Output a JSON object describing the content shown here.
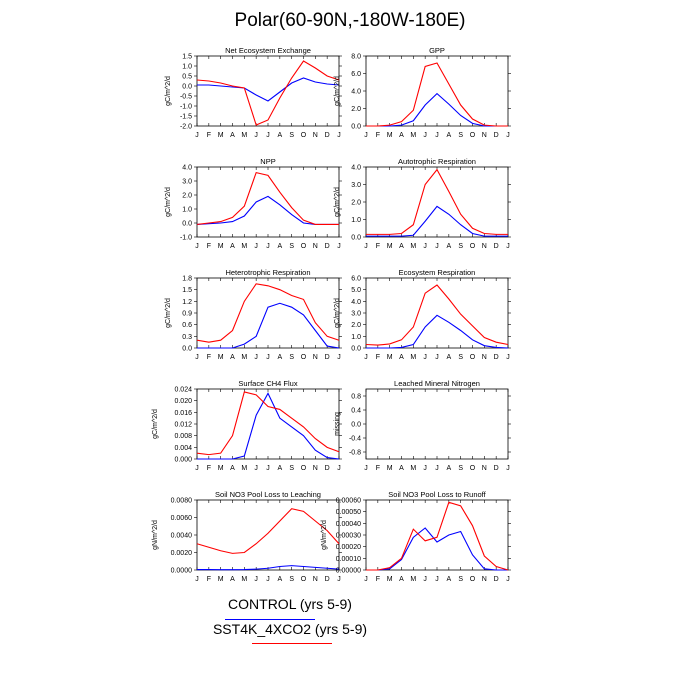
{
  "page_title": "Polar(60-90N,-180W-180E)",
  "legend": [
    {
      "label": "CONTROL (yrs 5-9)",
      "color": "#0000ff"
    },
    {
      "label": "SST4K_4XCO2 (yrs 5-9)",
      "color": "#ff0000"
    }
  ],
  "colors": {
    "control": "#0000ff",
    "experiment": "#ff0000"
  },
  "chart_data": [
    {
      "type": "line",
      "title": "Net Ecosystem Exchange",
      "ylabel": "gC/m^2/d",
      "categories": [
        "J",
        "F",
        "M",
        "A",
        "M",
        "J",
        "J",
        "A",
        "S",
        "O",
        "N",
        "D",
        "J"
      ],
      "ylim": [
        -2.0,
        1.5
      ],
      "yticks": [
        "1.5",
        "1.0",
        "0.5",
        "0.0",
        "-0.5",
        "-1.0",
        "-1.5",
        "-2.0"
      ],
      "series": [
        {
          "color": "#0000ff",
          "values": [
            0.05,
            0.05,
            0.0,
            -0.05,
            -0.1,
            -0.45,
            -0.75,
            -0.3,
            0.15,
            0.4,
            0.2,
            0.1,
            0.05
          ]
        },
        {
          "color": "#ff0000",
          "values": [
            0.3,
            0.25,
            0.15,
            0.0,
            -0.1,
            -1.95,
            -1.7,
            -0.6,
            0.4,
            1.25,
            0.9,
            0.5,
            0.3
          ]
        }
      ]
    },
    {
      "type": "line",
      "title": "GPP",
      "ylabel": "gC/m^2/d",
      "categories": [
        "J",
        "F",
        "M",
        "A",
        "M",
        "J",
        "J",
        "A",
        "S",
        "O",
        "N",
        "D",
        "J"
      ],
      "ylim": [
        0,
        8
      ],
      "yticks": [
        "8.0",
        "6.0",
        "4.0",
        "2.0",
        "0.0"
      ],
      "series": [
        {
          "color": "#0000ff",
          "values": [
            0,
            0,
            0,
            0.1,
            0.6,
            2.4,
            3.7,
            2.5,
            1.2,
            0.3,
            0,
            0,
            0
          ]
        },
        {
          "color": "#ff0000",
          "values": [
            0,
            0,
            0.1,
            0.5,
            1.8,
            6.8,
            7.2,
            4.8,
            2.4,
            0.8,
            0.1,
            0,
            0
          ]
        }
      ]
    },
    {
      "type": "line",
      "title": "NPP",
      "ylabel": "gC/m^2/d",
      "categories": [
        "J",
        "F",
        "M",
        "A",
        "M",
        "J",
        "J",
        "A",
        "S",
        "O",
        "N",
        "D",
        "J"
      ],
      "ylim": [
        -1,
        4
      ],
      "yticks": [
        "4.0",
        "3.0",
        "2.0",
        "1.0",
        "0.0",
        "-1.0"
      ],
      "series": [
        {
          "color": "#0000ff",
          "values": [
            -0.1,
            -0.05,
            0,
            0.1,
            0.5,
            1.5,
            1.9,
            1.3,
            0.6,
            0,
            -0.1,
            -0.1,
            -0.1
          ]
        },
        {
          "color": "#ff0000",
          "values": [
            -0.1,
            0,
            0.1,
            0.4,
            1.2,
            3.6,
            3.4,
            2.2,
            1.1,
            0.2,
            -0.1,
            -0.1,
            -0.1
          ]
        }
      ]
    },
    {
      "type": "line",
      "title": "Autotrophic Respiration",
      "ylabel": "gC/m^2/d",
      "categories": [
        "J",
        "F",
        "M",
        "A",
        "M",
        "J",
        "J",
        "A",
        "S",
        "O",
        "N",
        "D",
        "J"
      ],
      "ylim": [
        0,
        4
      ],
      "yticks": [
        "4.0",
        "3.0",
        "2.0",
        "1.0",
        "0.0"
      ],
      "series": [
        {
          "color": "#0000ff",
          "values": [
            0.05,
            0.05,
            0.05,
            0.05,
            0.1,
            0.9,
            1.75,
            1.3,
            0.7,
            0.2,
            0.05,
            0.05,
            0.05
          ]
        },
        {
          "color": "#ff0000",
          "values": [
            0.15,
            0.15,
            0.15,
            0.2,
            0.7,
            3.0,
            3.85,
            2.6,
            1.3,
            0.5,
            0.2,
            0.15,
            0.15
          ]
        }
      ]
    },
    {
      "type": "line",
      "title": "Heterotrophic Respiration",
      "ylabel": "gC/m^2/d",
      "categories": [
        "J",
        "F",
        "M",
        "A",
        "M",
        "J",
        "J",
        "A",
        "S",
        "O",
        "N",
        "D",
        "J"
      ],
      "ylim": [
        0,
        1.8
      ],
      "yticks": [
        "1.8",
        "1.5",
        "1.2",
        "0.9",
        "0.6",
        "0.3",
        "0.0"
      ],
      "series": [
        {
          "color": "#0000ff",
          "values": [
            0,
            0,
            0,
            0,
            0.1,
            0.3,
            1.05,
            1.15,
            1.05,
            0.85,
            0.45,
            0.05,
            0
          ]
        },
        {
          "color": "#ff0000",
          "values": [
            0.2,
            0.15,
            0.2,
            0.45,
            1.2,
            1.65,
            1.6,
            1.5,
            1.35,
            1.25,
            0.65,
            0.3,
            0.2
          ]
        }
      ]
    },
    {
      "type": "line",
      "title": "Ecosystem Respiration",
      "ylabel": "gC/m^2/d",
      "categories": [
        "J",
        "F",
        "M",
        "A",
        "M",
        "J",
        "J",
        "A",
        "S",
        "O",
        "N",
        "D",
        "J"
      ],
      "ylim": [
        0,
        6
      ],
      "yticks": [
        "6.0",
        "5.0",
        "4.0",
        "3.0",
        "2.0",
        "1.0",
        "0.0"
      ],
      "series": [
        {
          "color": "#0000ff",
          "values": [
            0,
            0,
            0,
            0.05,
            0.3,
            1.8,
            2.8,
            2.2,
            1.5,
            0.7,
            0.2,
            0.05,
            0
          ]
        },
        {
          "color": "#ff0000",
          "values": [
            0.3,
            0.25,
            0.35,
            0.7,
            1.8,
            4.7,
            5.4,
            4.2,
            2.9,
            1.9,
            0.9,
            0.5,
            0.3
          ]
        }
      ]
    },
    {
      "type": "line",
      "title": "Surface CH4 Flux",
      "ylabel": "gC/m^2/d",
      "categories": [
        "J",
        "F",
        "M",
        "A",
        "M",
        "J",
        "J",
        "A",
        "S",
        "O",
        "N",
        "D",
        "J"
      ],
      "ylim": [
        0,
        0.024
      ],
      "yticks": [
        "0.024",
        "0.020",
        "0.016",
        "0.012",
        "0.008",
        "0.004",
        "0.000"
      ],
      "series": [
        {
          "color": "#0000ff",
          "values": [
            0,
            0,
            0,
            0,
            0.001,
            0.015,
            0.0225,
            0.014,
            0.011,
            0.008,
            0.003,
            0.0005,
            0
          ]
        },
        {
          "color": "#ff0000",
          "values": [
            0.002,
            0.0015,
            0.002,
            0.008,
            0.023,
            0.022,
            0.018,
            0.017,
            0.014,
            0.011,
            0.007,
            0.004,
            0.0025
          ]
        }
      ]
    },
    {
      "type": "line",
      "title": "Leached Mineral Nitrogen",
      "ylabel": "missing",
      "categories": [
        "J",
        "F",
        "M",
        "A",
        "M",
        "J",
        "J",
        "A",
        "S",
        "O",
        "N",
        "D",
        "J"
      ],
      "ylim": [
        -1,
        1
      ],
      "yticks": [
        "0.8",
        "0.4",
        "0.0",
        "-0.4",
        "-0.8"
      ],
      "series": []
    },
    {
      "type": "line",
      "title": "Soil NO3 Pool Loss to Leaching",
      "ylabel": "gN/m^2/d",
      "categories": [
        "J",
        "F",
        "M",
        "A",
        "M",
        "J",
        "J",
        "A",
        "S",
        "O",
        "N",
        "D",
        "J"
      ],
      "ylim": [
        0,
        0.008
      ],
      "yticks": [
        "0.0080",
        "0.0060",
        "0.0040",
        "0.0020",
        "0.0000"
      ],
      "series": [
        {
          "color": "#0000ff",
          "values": [
            5e-05,
            5e-05,
            4e-05,
            4e-05,
            5e-05,
            0.0001,
            0.0002,
            0.0004,
            0.0005,
            0.0004,
            0.0003,
            0.0002,
            0.0001
          ]
        },
        {
          "color": "#ff0000",
          "values": [
            0.003,
            0.0026,
            0.0022,
            0.0019,
            0.002,
            0.003,
            0.0042,
            0.0056,
            0.007,
            0.0067,
            0.0056,
            0.0045,
            0.003
          ]
        }
      ]
    },
    {
      "type": "line",
      "title": "Soil NO3 Pool Loss to Runoff",
      "ylabel": "gN/m^2/d",
      "categories": [
        "J",
        "F",
        "M",
        "A",
        "M",
        "J",
        "J",
        "A",
        "S",
        "O",
        "N",
        "D",
        "J"
      ],
      "ylim": [
        0,
        0.0006
      ],
      "yticks": [
        "0.00060",
        "0.00050",
        "0.00040",
        "0.00030",
        "0.00020",
        "0.00010",
        "0.00000"
      ],
      "series": [
        {
          "color": "#0000ff",
          "values": [
            0,
            0,
            1e-05,
            9e-05,
            0.00028,
            0.00036,
            0.00024,
            0.0003,
            0.00033,
            0.00013,
            1e-05,
            0,
            0
          ]
        },
        {
          "color": "#ff0000",
          "values": [
            0,
            0,
            2e-05,
            0.0001,
            0.00035,
            0.00025,
            0.00028,
            0.00058,
            0.00055,
            0.00038,
            0.00012,
            3e-05,
            0
          ]
        }
      ]
    }
  ]
}
